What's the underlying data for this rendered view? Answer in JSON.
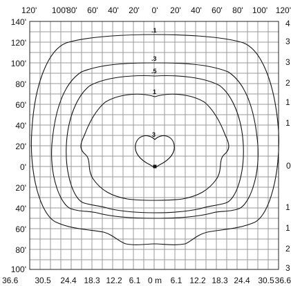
{
  "diagram": {
    "top_axis_labels": [
      "120'",
      "100'",
      "80'",
      "60'",
      "40'",
      "20'",
      "0'",
      "20'",
      "40'",
      "60'",
      "80'",
      "100'",
      "120'"
    ],
    "left_axis_labels": [
      "140'",
      "120'",
      "100'",
      "80'",
      "60'",
      "40'",
      "20'",
      "0'",
      "20'",
      "40'",
      "60'",
      "80'",
      "100'"
    ],
    "bottom_axis_labels": [
      "36.6",
      "30.5",
      "24.4",
      "18.3",
      "12.2",
      "6.1",
      "0 m",
      "6.1",
      "12.2",
      "18.3",
      "24.4",
      "30.5",
      "36.6"
    ],
    "right_axis_labels": [
      "4",
      "3",
      "3",
      "2",
      "1",
      "1",
      "0",
      "1",
      "1",
      "2",
      "3"
    ],
    "contours": [
      {
        "label": ".1"
      },
      {
        "label": ".3"
      },
      {
        "label": ".5"
      },
      {
        "label": "1"
      },
      {
        "label": "3"
      }
    ],
    "colors": {
      "grid": "#9a9a9a",
      "frame": "#222222",
      "contour": "#111111"
    }
  }
}
